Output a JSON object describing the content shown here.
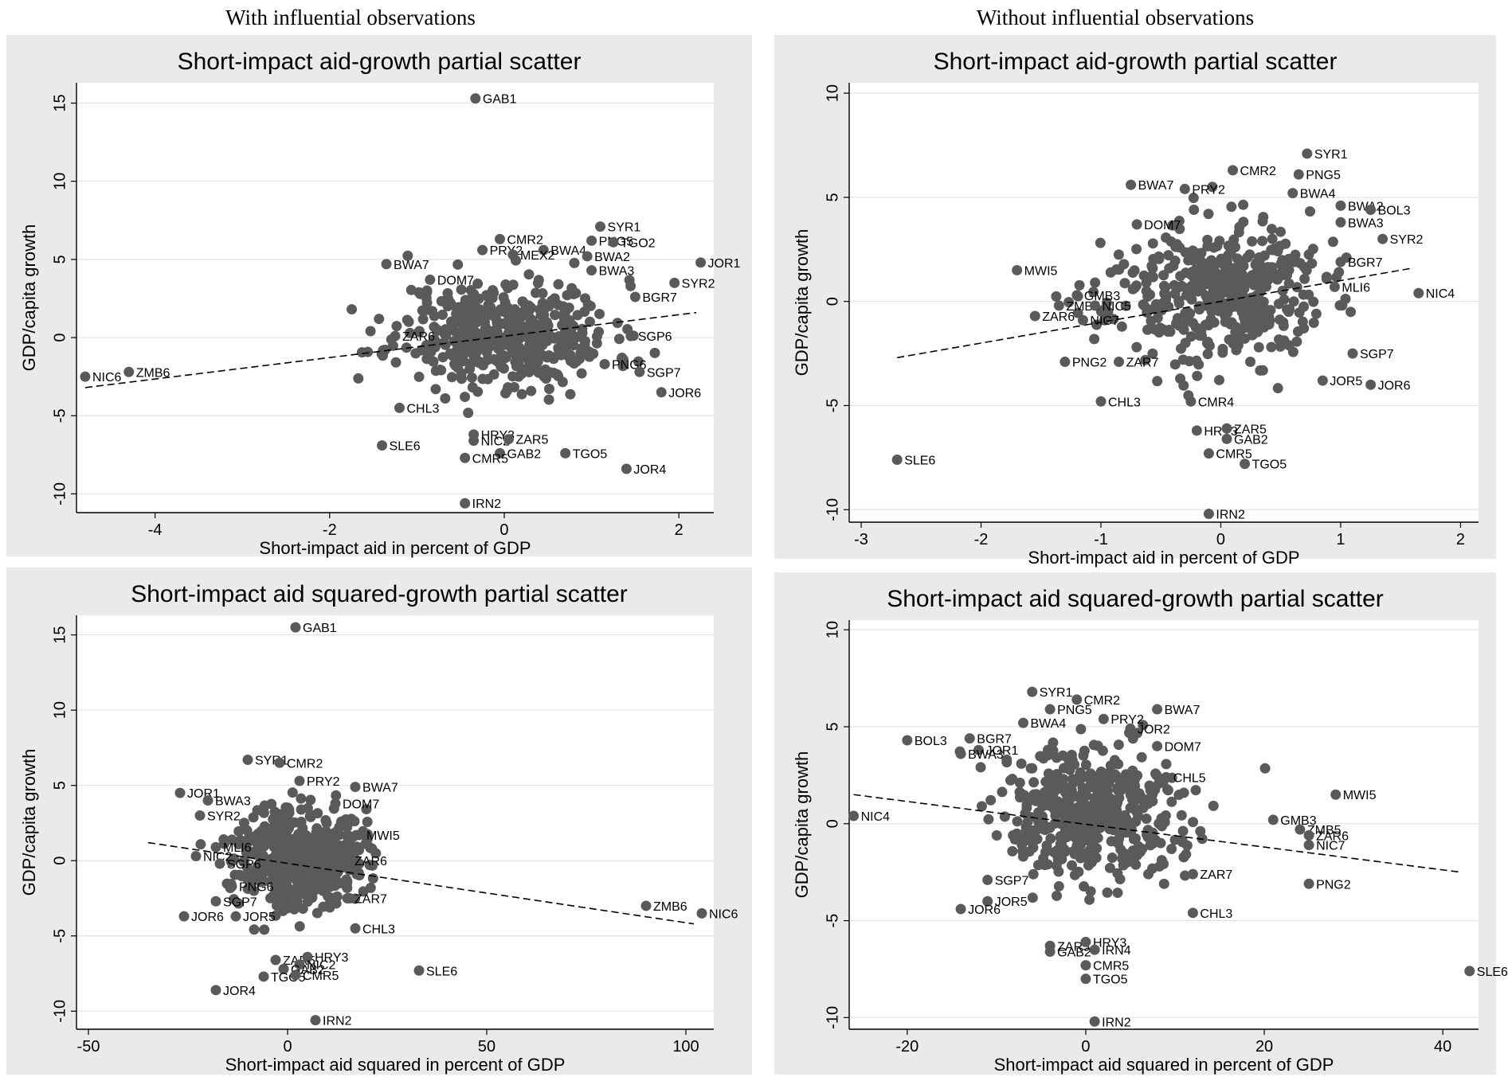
{
  "headers": {
    "left": "With influential observations",
    "right": "Without influential observations"
  },
  "style": {
    "background": "#eaeaea",
    "plot": "#ffffff",
    "grid": "#e3e3e3",
    "point": "#5a5a5a",
    "line": "#000000"
  },
  "chart_data": [
    {
      "type": "scatter",
      "title": "Short-impact aid-growth partial scatter",
      "xlabel": "Short-impact aid in percent of GDP",
      "ylabel": "GDP/capita growth",
      "xlim": [
        -4.9,
        2.4
      ],
      "ylim": [
        -11.2,
        16.3
      ],
      "xticks": [
        -4,
        -2,
        0,
        2
      ],
      "yticks": [
        -10,
        -5,
        0,
        5,
        10,
        15
      ],
      "fit": [
        [
          -4.8,
          -3.2
        ],
        [
          2.2,
          1.6
        ]
      ],
      "cloud_center": [
        0.0,
        0.3
      ],
      "cloud_spread": [
        0.62,
        2.0
      ],
      "cloud_n": 460,
      "seed": 11,
      "points": [
        {
          "label": "GAB1",
          "x": -0.33,
          "y": 15.3
        },
        {
          "label": "SYR1",
          "x": 1.1,
          "y": 7.1
        },
        {
          "label": "CMR2",
          "x": -0.05,
          "y": 6.3
        },
        {
          "label": "PNG5",
          "x": 1.0,
          "y": 6.2
        },
        {
          "label": "TGO2",
          "x": 1.25,
          "y": 6.1
        },
        {
          "label": "PRY2",
          "x": -0.25,
          "y": 5.6
        },
        {
          "label": "BWA4",
          "x": 0.45,
          "y": 5.6
        },
        {
          "label": "MEX2",
          "x": 0.1,
          "y": 5.3
        },
        {
          "label": "BWA2",
          "x": 0.95,
          "y": 5.2
        },
        {
          "label": "BWA3",
          "x": 1.0,
          "y": 4.3
        },
        {
          "label": "JOR1",
          "x": 2.25,
          "y": 4.8
        },
        {
          "label": "BWA7",
          "x": -1.35,
          "y": 4.7
        },
        {
          "label": "SYR2",
          "x": 1.95,
          "y": 3.5
        },
        {
          "label": "DOM7",
          "x": -0.85,
          "y": 3.7
        },
        {
          "label": "BGR7",
          "x": 1.5,
          "y": 2.6
        },
        {
          "label": "SGP6",
          "x": 1.45,
          "y": 0.1
        },
        {
          "label": "ZAR6",
          "x": -1.25,
          "y": 0.1
        },
        {
          "label": "PNG6",
          "x": 1.15,
          "y": -1.7
        },
        {
          "label": "SGP7",
          "x": 1.55,
          "y": -2.2
        },
        {
          "label": "NIC6",
          "x": -4.8,
          "y": -2.5
        },
        {
          "label": "ZMB6",
          "x": -4.3,
          "y": -2.2
        },
        {
          "label": "CHL3",
          "x": -1.2,
          "y": -4.5
        },
        {
          "label": "JOR6",
          "x": 1.8,
          "y": -3.5
        },
        {
          "label": "HRY3",
          "x": -0.35,
          "y": -6.2
        },
        {
          "label": "NIC2",
          "x": -0.35,
          "y": -6.6
        },
        {
          "label": "ZAR5",
          "x": 0.05,
          "y": -6.5
        },
        {
          "label": "SLE6",
          "x": -1.4,
          "y": -6.9
        },
        {
          "label": "GAB2",
          "x": -0.05,
          "y": -7.4
        },
        {
          "label": "CMR5",
          "x": -0.45,
          "y": -7.7
        },
        {
          "label": "TGO5",
          "x": 0.7,
          "y": -7.4
        },
        {
          "label": "JOR4",
          "x": 1.4,
          "y": -8.4
        },
        {
          "label": "IRN2",
          "x": -0.45,
          "y": -10.6
        }
      ]
    },
    {
      "type": "scatter",
      "title": "Short-impact aid-growth partial scatter",
      "xlabel": "Short-impact aid in percent of GDP",
      "ylabel": "GDP/capita growth",
      "xlim": [
        -3.1,
        2.15
      ],
      "ylim": [
        -10.6,
        10.5
      ],
      "xticks": [
        -3,
        -2,
        -1,
        0,
        1,
        2
      ],
      "yticks": [
        -10,
        -5,
        0,
        5,
        10
      ],
      "fit": [
        [
          -2.7,
          -2.7
        ],
        [
          1.6,
          1.6
        ]
      ],
      "cloud_center": [
        -0.05,
        0.4
      ],
      "cloud_spread": [
        0.45,
        1.95
      ],
      "cloud_n": 440,
      "seed": 23,
      "points": [
        {
          "label": "SYR1",
          "x": 0.72,
          "y": 7.1
        },
        {
          "label": "CMR2",
          "x": 0.1,
          "y": 6.3
        },
        {
          "label": "PNG5",
          "x": 0.65,
          "y": 6.1
        },
        {
          "label": "BWA7",
          "x": -0.75,
          "y": 5.6
        },
        {
          "label": "PRY2",
          "x": -0.3,
          "y": 5.4
        },
        {
          "label": "BWA4",
          "x": 0.6,
          "y": 5.2
        },
        {
          "label": "BWA2",
          "x": 1.0,
          "y": 4.6
        },
        {
          "label": "BOL3",
          "x": 1.25,
          "y": 4.4
        },
        {
          "label": "BWA3",
          "x": 1.0,
          "y": 3.8
        },
        {
          "label": "DOM7",
          "x": -0.7,
          "y": 3.7
        },
        {
          "label": "SYR2",
          "x": 1.35,
          "y": 3.0
        },
        {
          "label": "BGR7",
          "x": 1.0,
          "y": 1.9
        },
        {
          "label": "MWI5",
          "x": -1.7,
          "y": 1.5
        },
        {
          "label": "NIC4",
          "x": 1.65,
          "y": 0.4
        },
        {
          "label": "GMB3",
          "x": -1.2,
          "y": 0.3
        },
        {
          "label": "ZMB5",
          "x": -1.35,
          "y": -0.2
        },
        {
          "label": "NIC5",
          "x": -1.05,
          "y": -0.2
        },
        {
          "label": "ZAR6",
          "x": -1.55,
          "y": -0.7
        },
        {
          "label": "NIC7",
          "x": -1.15,
          "y": -0.9
        },
        {
          "label": "MLI6",
          "x": 0.95,
          "y": 0.7
        },
        {
          "label": "PNG2",
          "x": -1.3,
          "y": -2.9
        },
        {
          "label": "ZAR7",
          "x": -0.85,
          "y": -2.9
        },
        {
          "label": "SGP7",
          "x": 1.1,
          "y": -2.5
        },
        {
          "label": "JOR5",
          "x": 0.85,
          "y": -3.8
        },
        {
          "label": "JOR6",
          "x": 1.25,
          "y": -4.0
        },
        {
          "label": "CHL3",
          "x": -1.0,
          "y": -4.8
        },
        {
          "label": "CMR4",
          "x": -0.25,
          "y": -4.8
        },
        {
          "label": "HRY3",
          "x": -0.2,
          "y": -6.2
        },
        {
          "label": "ZAR5",
          "x": 0.05,
          "y": -6.1
        },
        {
          "label": "GAB2",
          "x": 0.05,
          "y": -6.6
        },
        {
          "label": "CMR5",
          "x": -0.1,
          "y": -7.3
        },
        {
          "label": "TGO5",
          "x": 0.2,
          "y": -7.8
        },
        {
          "label": "SLE6",
          "x": -2.7,
          "y": -7.6
        },
        {
          "label": "IRN2",
          "x": -0.1,
          "y": -10.2
        }
      ]
    },
    {
      "type": "scatter",
      "title": "Short-impact aid squared-growth partial scatter",
      "xlabel": "Short-impact aid squared in percent of GDP",
      "ylabel": "GDP/capita growth",
      "xlim": [
        -53,
        107
      ],
      "ylim": [
        -11.2,
        16.3
      ],
      "xticks": [
        -50,
        0,
        50,
        100
      ],
      "yticks": [
        -10,
        -5,
        0,
        5,
        10,
        15
      ],
      "fit": [
        [
          -35,
          1.2
        ],
        [
          102,
          -4.2
        ]
      ],
      "cloud_center": [
        3,
        0.4
      ],
      "cloud_spread": [
        8,
        2.0
      ],
      "cloud_n": 460,
      "seed": 37,
      "points": [
        {
          "label": "GAB1",
          "x": 2,
          "y": 15.5
        },
        {
          "label": "SYR1",
          "x": -10,
          "y": 6.7
        },
        {
          "label": "CMR2",
          "x": -2,
          "y": 6.5
        },
        {
          "label": "PRY2",
          "x": 3,
          "y": 5.3
        },
        {
          "label": "BWA7",
          "x": 17,
          "y": 4.9
        },
        {
          "label": "JOR1",
          "x": -27,
          "y": 4.5
        },
        {
          "label": "BWA3",
          "x": -20,
          "y": 4.0
        },
        {
          "label": "DOM7",
          "x": 12,
          "y": 3.8
        },
        {
          "label": "SYR2",
          "x": -22,
          "y": 3.0
        },
        {
          "label": "MWI5",
          "x": 18,
          "y": 1.7
        },
        {
          "label": "MLI6",
          "x": -18,
          "y": 0.9
        },
        {
          "label": "NIC2",
          "x": -23,
          "y": 0.3
        },
        {
          "label": "SGP6",
          "x": -17,
          "y": -0.2
        },
        {
          "label": "ZAR6",
          "x": 15,
          "y": 0.0
        },
        {
          "label": "PNG6",
          "x": -14,
          "y": -1.7
        },
        {
          "label": "SGP7",
          "x": -18,
          "y": -2.7
        },
        {
          "label": "ZAR7",
          "x": 15,
          "y": -2.5
        },
        {
          "label": "JOR6",
          "x": -26,
          "y": -3.7
        },
        {
          "label": "JOR5",
          "x": -13,
          "y": -3.7
        },
        {
          "label": "CHL3",
          "x": 17,
          "y": -4.5
        },
        {
          "label": "ZMB6",
          "x": 90,
          "y": -3.0
        },
        {
          "label": "NIC6",
          "x": 104,
          "y": -3.5
        },
        {
          "label": "ZAR5",
          "x": -3,
          "y": -6.6
        },
        {
          "label": "HRY3",
          "x": 5,
          "y": -6.4
        },
        {
          "label": "NIC2",
          "x": 3,
          "y": -6.9
        },
        {
          "label": "GAB2",
          "x": -1,
          "y": -7.2
        },
        {
          "label": "TGO5",
          "x": -6,
          "y": -7.7
        },
        {
          "label": "CMR5",
          "x": 2,
          "y": -7.6
        },
        {
          "label": "SLE6",
          "x": 33,
          "y": -7.3
        },
        {
          "label": "JOR4",
          "x": -18,
          "y": -8.6
        },
        {
          "label": "IRN2",
          "x": 7,
          "y": -10.6
        }
      ]
    },
    {
      "type": "scatter",
      "title": "Short-impact aid squared-growth partial scatter",
      "xlabel": "Short-impact aid squared in percent of GDP",
      "ylabel": "GDP/capita growth",
      "xlim": [
        -26.5,
        44
      ],
      "ylim": [
        -10.6,
        10.5
      ],
      "xticks": [
        -20,
        0,
        20,
        40
      ],
      "yticks": [
        -10,
        -5,
        0,
        5,
        10
      ],
      "fit": [
        [
          -26,
          1.5
        ],
        [
          42,
          -2.5
        ]
      ],
      "cloud_center": [
        1,
        0.4
      ],
      "cloud_spread": [
        5,
        2.0
      ],
      "cloud_n": 470,
      "seed": 51,
      "points": [
        {
          "label": "SYR1",
          "x": -6,
          "y": 6.8
        },
        {
          "label": "CMR2",
          "x": -1,
          "y": 6.4
        },
        {
          "label": "PNG5",
          "x": -4,
          "y": 5.9
        },
        {
          "label": "BWA7",
          "x": 8,
          "y": 5.9
        },
        {
          "label": "PRY2",
          "x": 2,
          "y": 5.4
        },
        {
          "label": "BWA4",
          "x": -7,
          "y": 5.2
        },
        {
          "label": "JOR2",
          "x": 5,
          "y": 4.9
        },
        {
          "label": "BOL3",
          "x": -20,
          "y": 4.3
        },
        {
          "label": "BGR7",
          "x": -13,
          "y": 4.4
        },
        {
          "label": "JOR1",
          "x": -12,
          "y": 3.8
        },
        {
          "label": "BWA3",
          "x": -14,
          "y": 3.6
        },
        {
          "label": "DOM7",
          "x": 8,
          "y": 4.0
        },
        {
          "label": "CHL5",
          "x": 9,
          "y": 2.4
        },
        {
          "label": "MWI5",
          "x": 28,
          "y": 1.5
        },
        {
          "label": "GMB3",
          "x": 21,
          "y": 0.2
        },
        {
          "label": "ZMB5",
          "x": 24,
          "y": -0.3
        },
        {
          "label": "ZAR6",
          "x": 25,
          "y": -0.6
        },
        {
          "label": "NIC7",
          "x": 25,
          "y": -1.1
        },
        {
          "label": "NIC4",
          "x": -26,
          "y": 0.4
        },
        {
          "label": "PNG2",
          "x": 25,
          "y": -3.1
        },
        {
          "label": "ZAR7",
          "x": 12,
          "y": -2.6
        },
        {
          "label": "SGP7",
          "x": -11,
          "y": -2.9
        },
        {
          "label": "JOR5",
          "x": -11,
          "y": -4.0
        },
        {
          "label": "JOR6",
          "x": -14,
          "y": -4.4
        },
        {
          "label": "CHL3",
          "x": 12,
          "y": -4.6
        },
        {
          "label": "ZAR5",
          "x": -4,
          "y": -6.3
        },
        {
          "label": "HRY3",
          "x": 0,
          "y": -6.1
        },
        {
          "label": "GAB2",
          "x": -4,
          "y": -6.6
        },
        {
          "label": "IRN4",
          "x": 1,
          "y": -6.5
        },
        {
          "label": "CMR5",
          "x": 0,
          "y": -7.3
        },
        {
          "label": "TGO5",
          "x": 0,
          "y": -8.0
        },
        {
          "label": "SLE6",
          "x": 43,
          "y": -7.6
        },
        {
          "label": "IRN2",
          "x": 1,
          "y": -10.2
        }
      ]
    }
  ]
}
